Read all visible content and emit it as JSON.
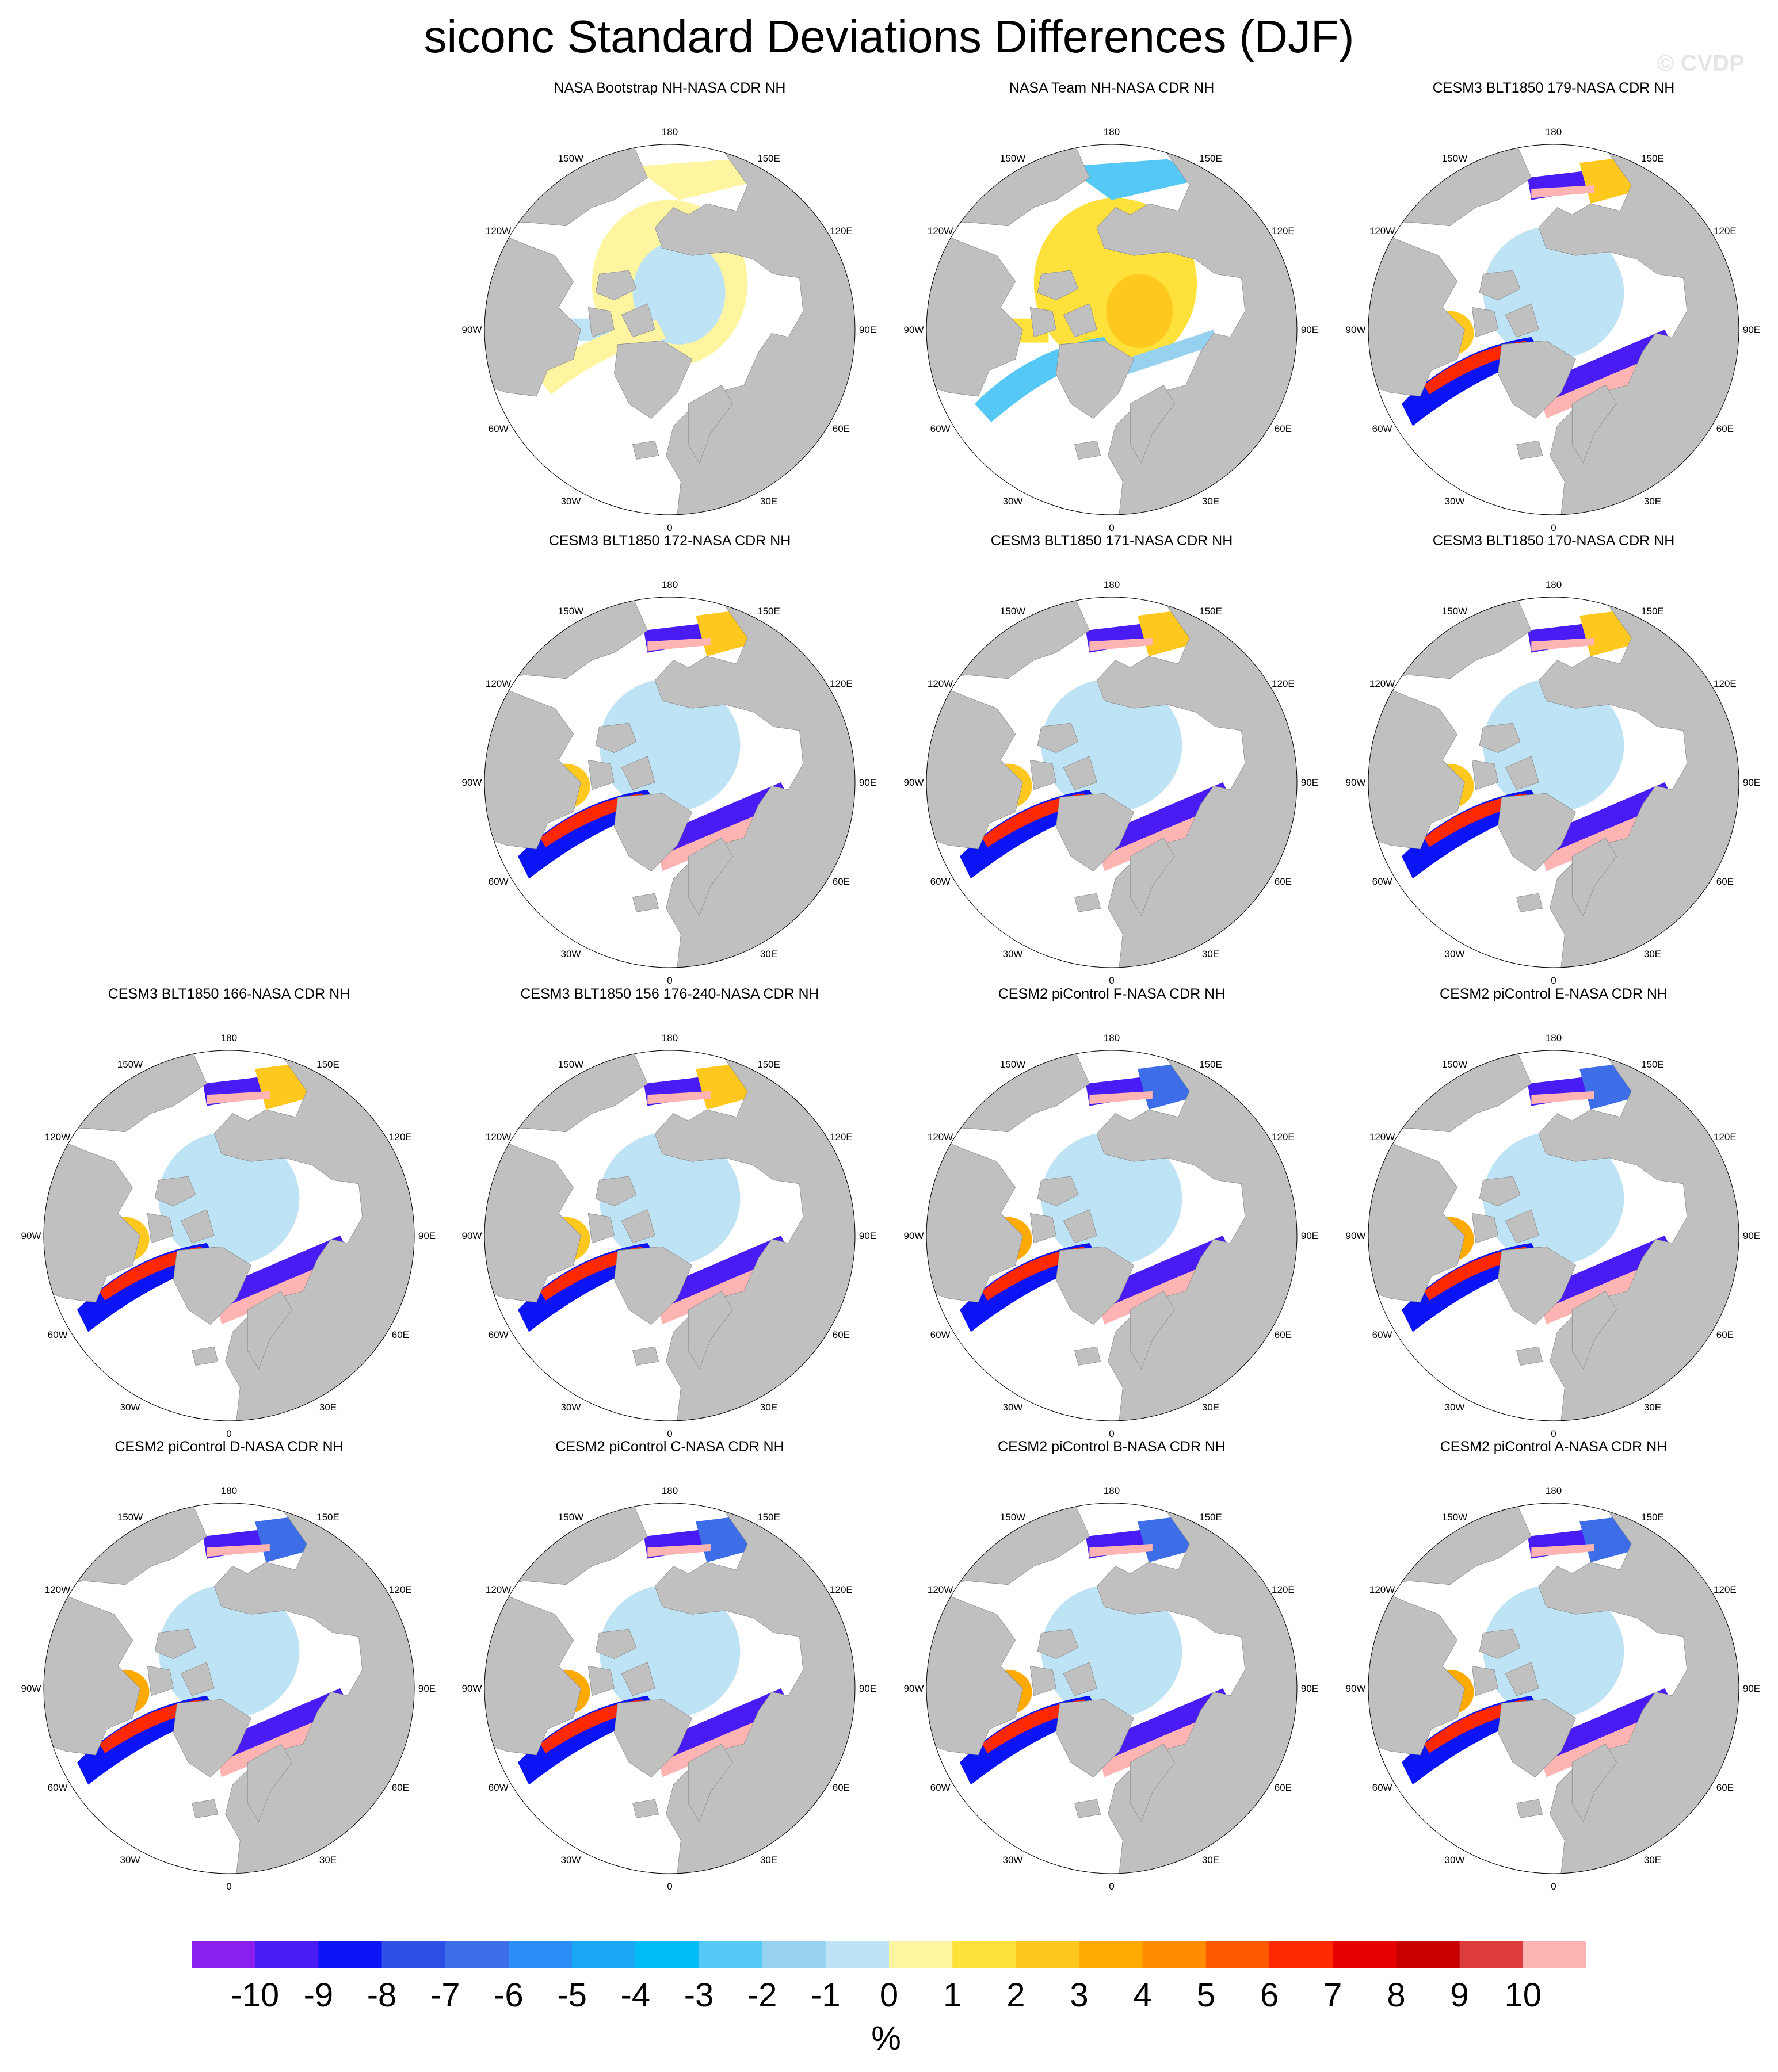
{
  "title": "siconc Standard Deviations Differences (DJF)",
  "watermark": "© CVDP",
  "panels": [
    {
      "title": "NASA Bootstrap NH-NASA CDR NH",
      "pattern": "bootstrap"
    },
    {
      "title": "NASA Team NH-NASA CDR NH",
      "pattern": "team"
    },
    {
      "title": "CESM3 BLT1850 179-NASA CDR NH",
      "pattern": "cesm3"
    },
    {
      "title": "CESM3 BLT1850 172-NASA CDR NH",
      "pattern": "cesm3"
    },
    {
      "title": "CESM3 BLT1850 171-NASA CDR NH",
      "pattern": "cesm3"
    },
    {
      "title": "CESM3 BLT1850 170-NASA CDR NH",
      "pattern": "cesm3"
    },
    {
      "title": "CESM3 BLT1850 166-NASA CDR NH",
      "pattern": "cesm3"
    },
    {
      "title": "CESM3 BLT1850 156 176-240-NASA CDR NH",
      "pattern": "cesm3"
    },
    {
      "title": "CESM2 piControl F-NASA CDR NH",
      "pattern": "cesm2"
    },
    {
      "title": "CESM2 piControl E-NASA CDR NH",
      "pattern": "cesm2"
    },
    {
      "title": "CESM2 piControl D-NASA CDR NH",
      "pattern": "cesm2"
    },
    {
      "title": "CESM2 piControl C-NASA CDR NH",
      "pattern": "cesm2"
    },
    {
      "title": "CESM2 piControl B-NASA CDR NH",
      "pattern": "cesm2"
    },
    {
      "title": "CESM2 piControl A-NASA CDR NH",
      "pattern": "cesm2"
    }
  ],
  "longitude_labels": [
    "180",
    "150E",
    "120E",
    "90E",
    "60E",
    "30E",
    "0",
    "30W",
    "60W",
    "90W",
    "120W",
    "150W"
  ],
  "colorbar": {
    "colors": [
      "#8a1ff0",
      "#4a1cf5",
      "#0a14f5",
      "#2e4fe6",
      "#3d6ee8",
      "#2a8cf5",
      "#1aa8f5",
      "#00bef5",
      "#55c8f5",
      "#96d2f0",
      "#bee3f5",
      "#fff5a0",
      "#ffe13c",
      "#ffc81e",
      "#ffaa00",
      "#ff8c00",
      "#ff5a00",
      "#ff2800",
      "#e60000",
      "#c80000",
      "#dc3c3c",
      "#ffb4b4"
    ],
    "labels": [
      "-10",
      "-9",
      "-8",
      "-7",
      "-6",
      "-5",
      "-4",
      "-3",
      "-2",
      "-1",
      "0",
      "1",
      "2",
      "3",
      "4",
      "5",
      "6",
      "7",
      "8",
      "9",
      "10"
    ],
    "units": "%"
  },
  "map_colors": {
    "land": "#c0c0c0",
    "ocean": "#ffffff",
    "neutral_ice": "#bee3f5"
  }
}
